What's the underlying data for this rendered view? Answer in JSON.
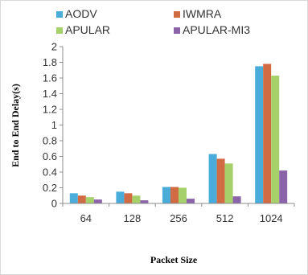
{
  "chart_data": {
    "type": "bar",
    "title": "",
    "xlabel": "Packet Size",
    "ylabel": "End to End Delay(s)",
    "ylim": [
      0,
      2
    ],
    "yticks": [
      "0",
      "0.2",
      "0.4",
      "0.6",
      "0.8",
      "1",
      "1.2",
      "1.4",
      "1.6",
      "1.8",
      "2"
    ],
    "grid": false,
    "legend_position": "top",
    "categories": [
      "64",
      "128",
      "256",
      "512",
      "1024"
    ],
    "series": [
      {
        "name": "AODV",
        "color": "#4aacd9",
        "values": [
          0.13,
          0.15,
          0.21,
          0.63,
          1.75
        ]
      },
      {
        "name": "IWMRA",
        "color": "#d06b44",
        "values": [
          0.1,
          0.13,
          0.21,
          0.57,
          1.78
        ]
      },
      {
        "name": "APULAR",
        "color": "#a6d16a",
        "values": [
          0.08,
          0.1,
          0.2,
          0.51,
          1.63
        ]
      },
      {
        "name": "APULAR-MI3",
        "color": "#8b63a8",
        "values": [
          0.05,
          0.04,
          0.06,
          0.09,
          0.42
        ]
      }
    ]
  }
}
